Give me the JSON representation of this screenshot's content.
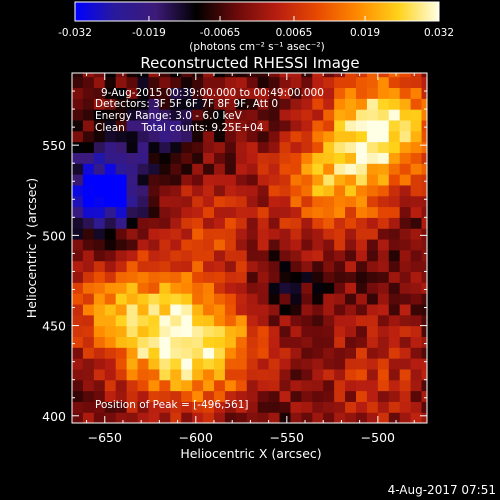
{
  "chart_data": {
    "type": "heatmap",
    "title": "Reconstructed RHESSI Image",
    "xlabel": "Heliocentric X (arcsec)",
    "ylabel": "Heliocentric Y (arcsec)",
    "xlim": [
      -668,
      -473
    ],
    "ylim": [
      396,
      590
    ],
    "x_ticks": [
      -650,
      -600,
      -550,
      -500
    ],
    "y_ticks": [
      400,
      450,
      500,
      550
    ],
    "colorbar": {
      "label": "(photons cm⁻² s⁻¹ asec⁻²)",
      "range": [
        -0.032,
        0.032
      ],
      "ticks": [
        "-0.032",
        "-0.019",
        "-0.0065",
        "0.0065",
        "0.019",
        "0.032"
      ],
      "colormap": [
        "#0000ff",
        "#2a1a9a",
        "#3d1a78",
        "#000000",
        "#6b0a0a",
        "#b81e10",
        "#e84a00",
        "#ff8a00",
        "#ffd21a",
        "#ffffe6"
      ]
    },
    "annotations": [
      "9-Aug-2015 00:39:00.000 to 00:49:00.000",
      "Detectors: 3F 5F 6F 7F 8F 9F, Att 0",
      "Energy Range: 3.0 - 6.0 keV",
      "Clean     Total counts: 9.25E+04",
      "Position of Peak = [-496,561]"
    ],
    "peak": [
      -496,
      561
    ],
    "sources": [
      {
        "x": -496,
        "y": 561,
        "value": 0.032
      },
      {
        "x": -525,
        "y": 528,
        "value": 0.022
      },
      {
        "x": -600,
        "y": 435,
        "value": 0.024
      },
      {
        "x": -625,
        "y": 448,
        "value": 0.018
      },
      {
        "x": -650,
        "y": 465,
        "value": 0.012
      },
      {
        "x": -595,
        "y": 502,
        "value": 0.011
      },
      {
        "x": -575,
        "y": 452,
        "value": 0.009
      },
      {
        "x": -500,
        "y": 425,
        "value": 0.01
      },
      {
        "x": -650,
        "y": 524,
        "value": -0.032
      },
      {
        "x": -620,
        "y": 560,
        "value": -0.012
      },
      {
        "x": -555,
        "y": 470,
        "value": -0.01
      }
    ]
  },
  "footer": {
    "timestamp": "4-Aug-2017 07:51"
  }
}
